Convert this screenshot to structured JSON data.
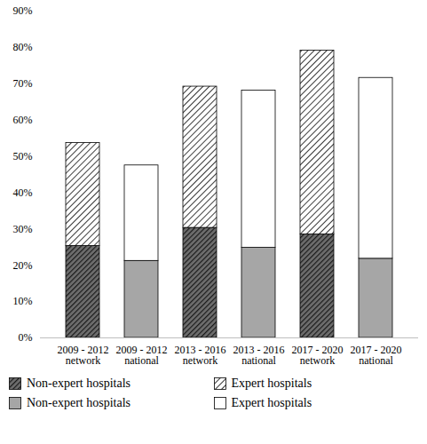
{
  "chart_data": {
    "type": "bar",
    "stacked": true,
    "categories": [
      "2009 - 2012 network",
      "2009 - 2012 national",
      "2013 - 2016 network",
      "2013 - 2016 national",
      "2017 - 2020 network",
      "2017 - 2020 national"
    ],
    "series": [
      {
        "name": "Non-expert hospitals",
        "color": "#3a3a3a",
        "values": [
          25.3,
          null,
          30.3,
          null,
          28.5,
          null
        ]
      },
      {
        "name": "Expert hospitals",
        "color": "#8c8c8c",
        "values": [
          28.4,
          null,
          38.9,
          null,
          50.6,
          null
        ]
      },
      {
        "name": "Non-expert hospitals",
        "color": "#a6a6a6",
        "values": [
          null,
          21.2,
          null,
          24.8,
          null,
          21.8
        ]
      },
      {
        "name": "Expert hospitals",
        "color": "#ffffff",
        "values": [
          null,
          26.3,
          null,
          43.3,
          null,
          49.8
        ]
      }
    ],
    "ylim": [
      0,
      90
    ],
    "yticks": [
      {
        "value": 0,
        "label": "0%"
      },
      {
        "value": 10,
        "label": "10%"
      },
      {
        "value": 20,
        "label": "20%"
      },
      {
        "value": 30,
        "label": "30%"
      },
      {
        "value": 40,
        "label": "40%"
      },
      {
        "value": 50,
        "label": "50%"
      },
      {
        "value": 60,
        "label": "60%"
      },
      {
        "value": 70,
        "label": "70%"
      },
      {
        "value": 80,
        "label": "80%"
      },
      {
        "value": 90,
        "label": "90%"
      }
    ],
    "grid": false,
    "legend": "bottom"
  }
}
